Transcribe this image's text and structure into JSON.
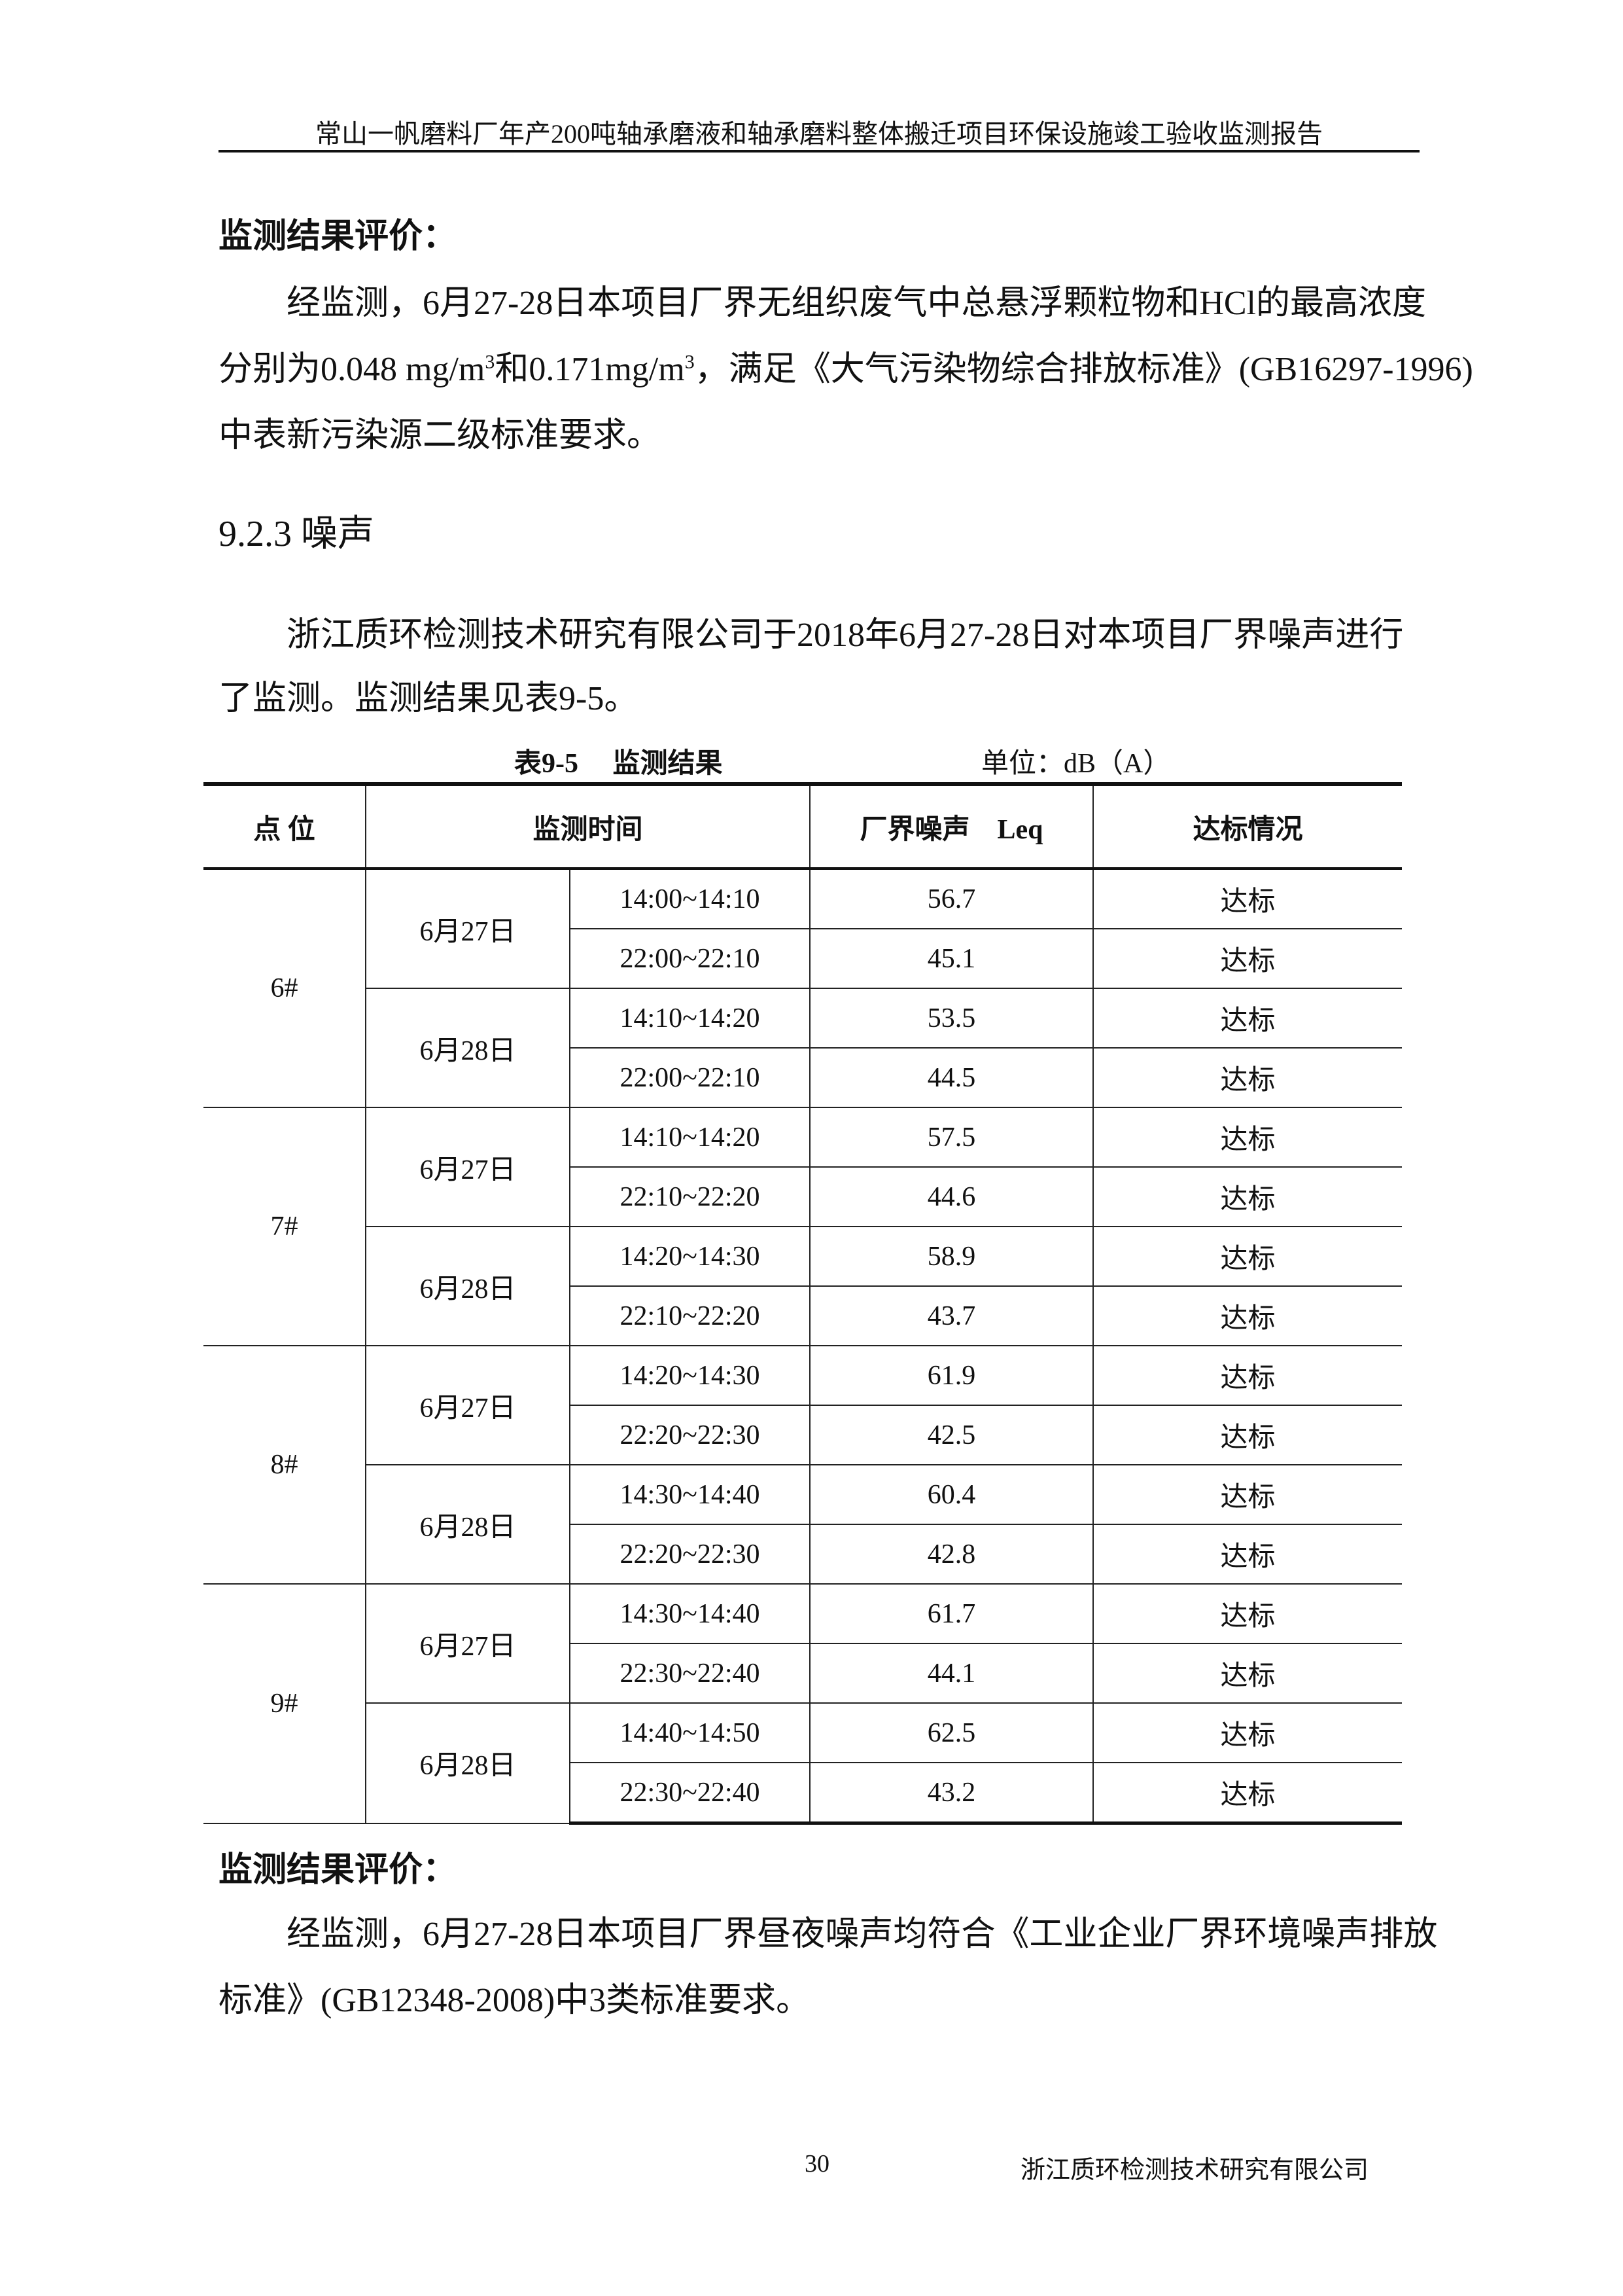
{
  "header": {
    "title": "常山一帆磨料厂年产200吨轴承磨液和轴承磨料整体搬迁项目环保设施竣工验收监测报告"
  },
  "section1": {
    "eval_title": "监测结果评价：",
    "line1": "经监测，6月27-28日本项目厂界无组织废气中总悬浮颗粒物和HCl的最高浓度",
    "line2a": "分别为0.048 mg/m",
    "sup": "3",
    "line2b": "和0.171mg/m",
    "line2c": "，满足《大气污染物综合排放标准》(GB16297-1996)",
    "line3": "中表新污染源二级标准要求。"
  },
  "section2": {
    "heading": "9.2.3 噪声",
    "line1": "浙江质环检测技术研究有限公司于2018年6月27-28日对本项目厂界噪声进行",
    "line2": "了监测。监测结果见表9-5。"
  },
  "table": {
    "caption": "表9-5　 监测结果",
    "unit": "单位：dB（A）",
    "headers": [
      "点 位",
      "监测时间",
      "厂界噪声　Leq",
      "达标情况"
    ],
    "points": [
      {
        "point": "6#",
        "days": [
          {
            "date": "6月27日",
            "rows": [
              [
                "14:00~14:10",
                "56.7",
                "达标"
              ],
              [
                "22:00~22:10",
                "45.1",
                "达标"
              ]
            ]
          },
          {
            "date": "6月28日",
            "rows": [
              [
                "14:10~14:20",
                "53.5",
                "达标"
              ],
              [
                "22:00~22:10",
                "44.5",
                "达标"
              ]
            ]
          }
        ]
      },
      {
        "point": "7#",
        "days": [
          {
            "date": "6月27日",
            "rows": [
              [
                "14:10~14:20",
                "57.5",
                "达标"
              ],
              [
                "22:10~22:20",
                "44.6",
                "达标"
              ]
            ]
          },
          {
            "date": "6月28日",
            "rows": [
              [
                "14:20~14:30",
                "58.9",
                "达标"
              ],
              [
                "22:10~22:20",
                "43.7",
                "达标"
              ]
            ]
          }
        ]
      },
      {
        "point": "8#",
        "days": [
          {
            "date": "6月27日",
            "rows": [
              [
                "14:20~14:30",
                "61.9",
                "达标"
              ],
              [
                "22:20~22:30",
                "42.5",
                "达标"
              ]
            ]
          },
          {
            "date": "6月28日",
            "rows": [
              [
                "14:30~14:40",
                "60.4",
                "达标"
              ],
              [
                "22:20~22:30",
                "42.8",
                "达标"
              ]
            ]
          }
        ]
      },
      {
        "point": "9#",
        "days": [
          {
            "date": "6月27日",
            "rows": [
              [
                "14:30~14:40",
                "61.7",
                "达标"
              ],
              [
                "22:30~22:40",
                "44.1",
                "达标"
              ]
            ]
          },
          {
            "date": "6月28日",
            "rows": [
              [
                "14:40~14:50",
                "62.5",
                "达标"
              ],
              [
                "22:30~22:40",
                "43.2",
                "达标"
              ]
            ]
          }
        ]
      }
    ]
  },
  "section3": {
    "eval_title": "监测结果评价：",
    "line1": "经监测，6月27-28日本项目厂界昼夜噪声均符合《工业企业厂界环境噪声排放",
    "line2": "标准》(GB12348-2008)中3类标准要求。"
  },
  "footer": {
    "page": "30",
    "company": "浙江质环检测技术研究有限公司"
  }
}
